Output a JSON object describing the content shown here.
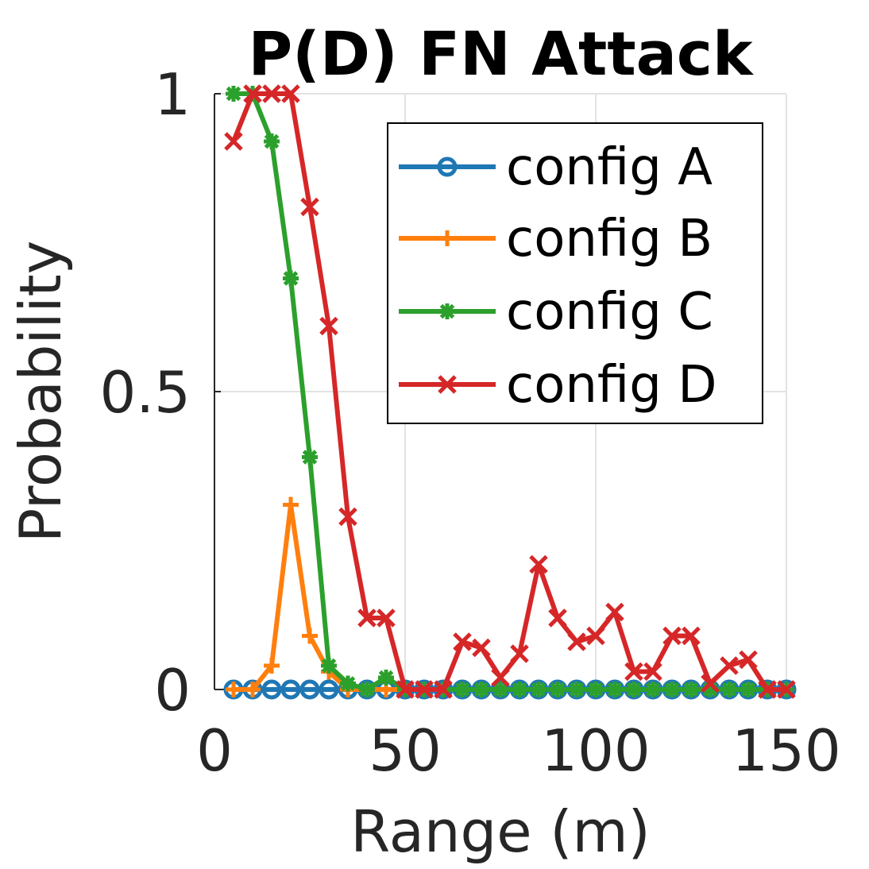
{
  "chart_data": {
    "type": "line",
    "title": "P(D) FN Attack",
    "xlabel": "Range (m)",
    "ylabel": "Probability",
    "xlim": [
      0,
      150
    ],
    "ylim": [
      0,
      1
    ],
    "xticks": [
      0,
      50,
      100,
      150
    ],
    "xtick_labels": [
      "0",
      "50",
      "100",
      "150"
    ],
    "yticks": [
      0,
      0.5,
      1
    ],
    "ytick_labels": [
      "0",
      "0.5",
      "1"
    ],
    "grid": true,
    "legend_position": "top-right",
    "x": [
      5,
      10,
      15,
      20,
      25,
      30,
      35,
      40,
      45,
      50,
      55,
      60,
      65,
      70,
      75,
      80,
      85,
      90,
      95,
      100,
      105,
      110,
      115,
      120,
      125,
      130,
      135,
      140,
      145,
      150
    ],
    "series": [
      {
        "name": "config A",
        "color": "#1f77b4",
        "marker": "circle",
        "values": [
          0,
          0,
          0,
          0,
          0,
          0,
          0,
          0,
          0,
          0,
          0,
          0,
          0,
          0,
          0,
          0,
          0,
          0,
          0,
          0,
          0,
          0,
          0,
          0,
          0,
          0,
          0,
          0,
          0,
          0
        ]
      },
      {
        "name": "config B",
        "color": "#ff7f0e",
        "marker": "plus",
        "values": [
          0,
          0,
          0.04,
          0.31,
          0.09,
          0.03,
          0,
          0,
          0,
          0,
          0,
          0,
          0,
          0,
          0,
          0,
          0,
          0,
          0,
          0,
          0,
          0,
          0,
          0,
          0,
          0,
          0,
          0,
          0,
          0
        ]
      },
      {
        "name": "config C",
        "color": "#2ca02c",
        "marker": "asterisk",
        "values": [
          1.0,
          1.0,
          0.92,
          0.69,
          0.39,
          0.04,
          0.01,
          0,
          0.02,
          0,
          0,
          0,
          0,
          0,
          0,
          0,
          0,
          0,
          0,
          0,
          0,
          0,
          0,
          0,
          0,
          0,
          0,
          0,
          0,
          0
        ]
      },
      {
        "name": "config D",
        "color": "#d62728",
        "marker": "x",
        "values": [
          0.92,
          1.0,
          1.0,
          1.0,
          0.81,
          0.61,
          0.29,
          0.12,
          0.12,
          0,
          0,
          0,
          0.08,
          0.07,
          0.02,
          0.06,
          0.21,
          0.12,
          0.08,
          0.09,
          0.13,
          0.03,
          0.03,
          0.09,
          0.09,
          0.01,
          0.04,
          0.05,
          0,
          0
        ]
      }
    ]
  }
}
